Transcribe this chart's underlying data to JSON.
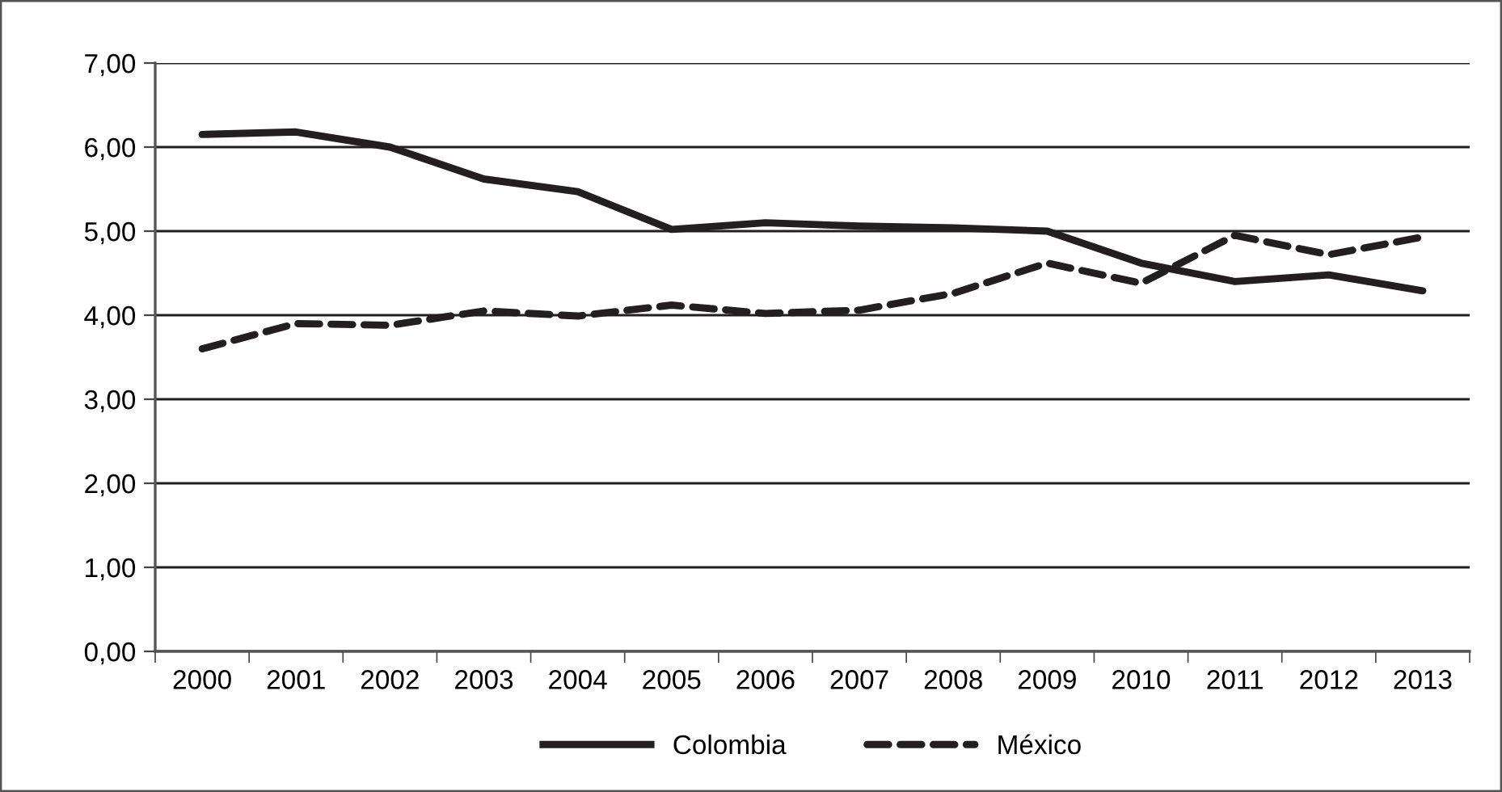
{
  "chart_data": {
    "type": "line",
    "categories": [
      "2000",
      "2001",
      "2002",
      "2003",
      "2004",
      "2005",
      "2006",
      "2007",
      "2008",
      "2009",
      "2010",
      "2011",
      "2012",
      "2013"
    ],
    "series": [
      {
        "name": "Colombia",
        "color": "#231f20",
        "line_style": "solid",
        "values": [
          6.15,
          6.18,
          6.0,
          5.62,
          5.47,
          5.02,
          5.1,
          5.06,
          5.04,
          5.0,
          4.62,
          4.4,
          4.48,
          4.29
        ]
      },
      {
        "name": "México",
        "color": "#231f20",
        "line_style": "dashed",
        "values": [
          3.6,
          3.9,
          3.88,
          4.05,
          3.99,
          4.12,
          4.02,
          4.06,
          4.26,
          4.62,
          4.38,
          4.95,
          4.72,
          4.93
        ]
      }
    ],
    "ylim": [
      0,
      7
    ],
    "yticks": [
      {
        "value": 0,
        "label": "0,00"
      },
      {
        "value": 1,
        "label": "1,00"
      },
      {
        "value": 2,
        "label": "2,00"
      },
      {
        "value": 3,
        "label": "3,00"
      },
      {
        "value": 4,
        "label": "4,00"
      },
      {
        "value": 5,
        "label": "5,00"
      },
      {
        "value": 6,
        "label": "6,00"
      },
      {
        "value": 7,
        "label": "7,00"
      }
    ],
    "grid": "y",
    "legend": "bottom",
    "marker": "none"
  }
}
